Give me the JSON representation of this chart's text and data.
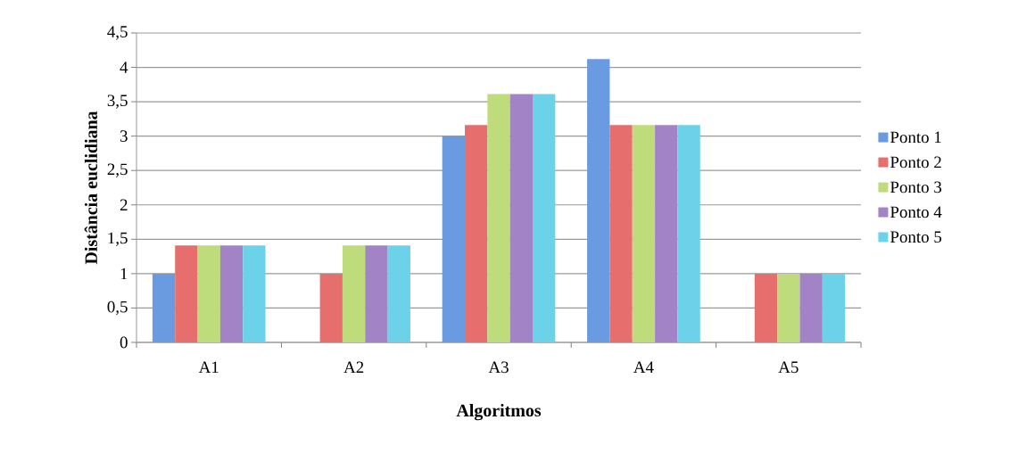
{
  "chart_data": {
    "type": "bar",
    "xlabel": "Algoritmos",
    "ylabel": "Distância euclidiana",
    "categories": [
      "A1",
      "A2",
      "A3",
      "A4",
      "A5"
    ],
    "series": [
      {
        "name": "Ponto 1",
        "color": "#6a9ae0",
        "values": [
          1,
          0,
          3,
          4.12,
          0
        ]
      },
      {
        "name": "Ponto 2",
        "color": "#e66f6d",
        "values": [
          1.41,
          1,
          3.16,
          3.16,
          1
        ]
      },
      {
        "name": "Ponto 3",
        "color": "#bfdc7c",
        "values": [
          1.41,
          1.41,
          3.61,
          3.16,
          1
        ]
      },
      {
        "name": "Ponto 4",
        "color": "#a283c6",
        "values": [
          1.41,
          1.41,
          3.61,
          3.16,
          1
        ]
      },
      {
        "name": "Ponto 5",
        "color": "#6bd2ea",
        "values": [
          1.41,
          1.41,
          3.61,
          3.16,
          1
        ]
      }
    ],
    "ylim": [
      0,
      4.5
    ],
    "yticks": [
      0,
      {
        "value": 0.5,
        "label": "0,5"
      },
      1,
      {
        "value": 1.5,
        "label": "1,5"
      },
      2,
      {
        "value": 2.5,
        "label": "2,5"
      },
      3,
      {
        "value": 3.5,
        "label": "3,5"
      },
      4,
      {
        "value": 4.5,
        "label": "4,5"
      }
    ],
    "grid": "y",
    "legend": "right"
  }
}
